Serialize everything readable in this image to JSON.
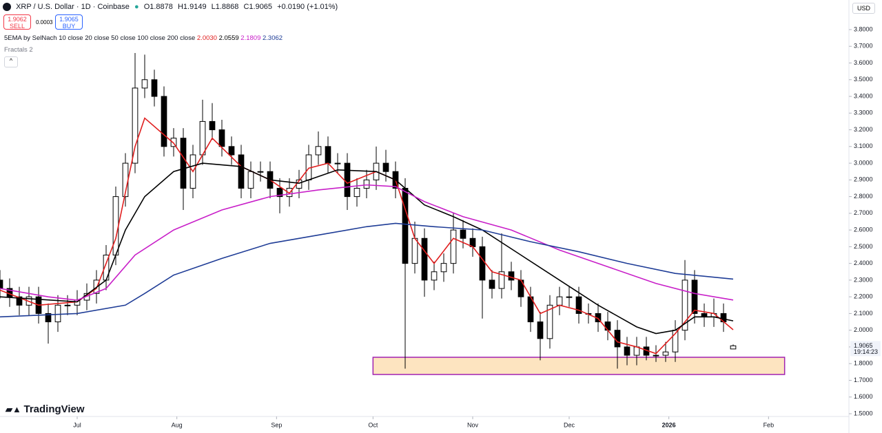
{
  "header": {
    "symbol": "XRP / U.S. Dollar · 1D · Coinbase",
    "ohlc": [
      "O1.8878",
      "H1.9149",
      "L1.8868",
      "C1.9065",
      "+0.0190 (+1.01%)"
    ],
    "sell_price": "1.9062",
    "sell": "SELL",
    "spread": "0.0003",
    "buy_price": "1.9065",
    "buy": "BUY",
    "indicator": "5EMA by SelNach 10 close 20 close 50 close 100 close 200 close",
    "indicator_values": [
      "2.0030",
      "2.0559",
      "2.1809",
      "2.3062"
    ],
    "fractals": "Fractals 2",
    "currency": "USD",
    "brand": "TradingView"
  },
  "chart_data": {
    "type": "candlestick",
    "x": [
      -24,
      -21,
      -18,
      -15,
      -12,
      -9,
      -6,
      -3,
      0,
      3,
      6,
      9,
      12,
      15,
      18,
      21,
      24,
      27,
      30,
      33,
      36,
      39,
      42,
      45,
      48,
      51,
      54,
      57,
      60,
      63,
      66,
      69,
      72,
      75,
      78,
      81,
      84,
      87,
      90,
      93,
      96,
      99,
      102,
      105,
      108,
      111,
      114,
      117,
      120,
      123,
      126,
      129,
      132,
      135,
      138,
      141,
      144,
      147,
      150,
      153,
      156,
      159,
      162,
      165,
      168,
      171,
      174,
      177,
      180,
      183,
      186,
      189,
      192,
      195,
      198,
      201,
      204
    ],
    "open": [
      2.3,
      2.25,
      2.2,
      2.15,
      2.2,
      2.1,
      2.05,
      2.15,
      2.15,
      2.18,
      2.22,
      2.3,
      2.45,
      2.8,
      3.0,
      3.45,
      3.5,
      3.4,
      3.1,
      3.15,
      2.85,
      3.05,
      3.25,
      3.2,
      3.1,
      3.05,
      2.85,
      2.95,
      2.95,
      2.85,
      2.8,
      2.85,
      2.9,
      3.05,
      3.1,
      3.0,
      3.0,
      2.8,
      2.85,
      2.9,
      3.0,
      2.95,
      2.85,
      2.4,
      2.55,
      2.3,
      2.35,
      2.4,
      2.6,
      2.55,
      2.5,
      2.3,
      2.25,
      2.35,
      2.3,
      2.2,
      2.05,
      1.95,
      2.15,
      2.2,
      2.2,
      2.1,
      2.1,
      2.05,
      2.0,
      1.9,
      1.85,
      1.9,
      1.85,
      1.85,
      1.87,
      2.0,
      2.3,
      2.1,
      2.08,
      2.1,
      1.8878
    ],
    "high": [
      2.36,
      2.31,
      2.26,
      2.26,
      2.26,
      2.16,
      2.21,
      2.21,
      2.24,
      2.28,
      2.36,
      2.51,
      2.86,
      3.06,
      3.66,
      3.65,
      3.56,
      3.46,
      3.21,
      3.21,
      3.11,
      3.38,
      3.36,
      3.26,
      3.16,
      3.11,
      3.01,
      3.01,
      3.01,
      2.91,
      2.91,
      2.96,
      3.11,
      3.19,
      3.16,
      3.06,
      3.06,
      2.91,
      2.96,
      3.1,
      3.08,
      3.01,
      2.91,
      2.65,
      2.61,
      2.41,
      2.46,
      2.7,
      2.66,
      2.61,
      2.56,
      2.36,
      2.58,
      2.41,
      2.36,
      2.26,
      2.11,
      2.21,
      2.26,
      2.26,
      2.26,
      2.16,
      2.16,
      2.11,
      2.06,
      1.96,
      1.96,
      1.96,
      1.91,
      1.93,
      2.06,
      2.42,
      2.36,
      2.16,
      2.19,
      2.16,
      1.9149
    ],
    "low": [
      2.19,
      2.14,
      2.09,
      2.09,
      2.04,
      1.92,
      1.99,
      2.09,
      2.09,
      2.12,
      2.16,
      2.24,
      2.39,
      2.74,
      2.94,
      3.39,
      3.34,
      3.04,
      3.04,
      2.72,
      2.79,
      2.99,
      3.14,
      3.04,
      2.99,
      2.79,
      2.79,
      2.89,
      2.79,
      2.7,
      2.74,
      2.79,
      2.84,
      2.99,
      2.94,
      2.94,
      2.72,
      2.74,
      2.79,
      2.84,
      2.89,
      2.79,
      1.77,
      2.34,
      2.2,
      2.24,
      2.29,
      2.34,
      2.49,
      2.44,
      2.07,
      2.19,
      2.19,
      2.24,
      2.14,
      1.99,
      1.82,
      1.89,
      2.09,
      2.14,
      2.04,
      2.04,
      1.99,
      1.94,
      1.77,
      1.79,
      1.79,
      1.82,
      1.81,
      1.81,
      1.81,
      1.94,
      2.04,
      2.02,
      2.02,
      1.99,
      1.8868
    ],
    "close": [
      2.25,
      2.2,
      2.15,
      2.2,
      2.1,
      2.05,
      2.15,
      2.15,
      2.18,
      2.22,
      2.3,
      2.45,
      2.8,
      3.0,
      3.45,
      3.5,
      3.4,
      3.1,
      3.15,
      2.85,
      3.05,
      3.25,
      3.2,
      3.1,
      3.05,
      2.85,
      2.95,
      2.95,
      2.85,
      2.8,
      2.85,
      2.9,
      3.05,
      3.1,
      3.0,
      3.0,
      2.8,
      2.85,
      2.9,
      3.0,
      2.95,
      2.85,
      2.4,
      2.55,
      2.3,
      2.35,
      2.4,
      2.6,
      2.55,
      2.5,
      2.3,
      2.25,
      2.35,
      2.3,
      2.2,
      2.05,
      1.95,
      2.15,
      2.2,
      2.2,
      2.1,
      2.1,
      2.05,
      2.0,
      1.9,
      1.85,
      1.9,
      1.85,
      1.85,
      1.87,
      2.0,
      2.3,
      2.1,
      2.08,
      2.1,
      2.05,
      1.9065
    ],
    "up_color": "#ffffff",
    "down_color": "#000000",
    "series": [
      {
        "name": "10 close",
        "color": "#e01e1e",
        "x": [
          -24,
          -12,
          0,
          6,
          12,
          18,
          21,
          30,
          36,
          42,
          51,
          60,
          66,
          72,
          78,
          84,
          93,
          99,
          105,
          111,
          117,
          123,
          129,
          138,
          144,
          150,
          156,
          162,
          168,
          174,
          180,
          186,
          192,
          198,
          204
        ],
        "values": [
          2.24,
          2.15,
          2.17,
          2.25,
          2.55,
          3.1,
          3.27,
          3.12,
          2.95,
          3.15,
          2.98,
          2.9,
          2.82,
          2.97,
          3.0,
          2.88,
          2.95,
          2.9,
          2.55,
          2.4,
          2.55,
          2.5,
          2.35,
          2.3,
          2.1,
          2.15,
          2.12,
          2.07,
          1.93,
          1.9,
          1.86,
          1.98,
          2.12,
          2.1,
          2.003
        ]
      },
      {
        "name": "20 close",
        "color": "#000000",
        "x": [
          -24,
          0,
          9,
          15,
          21,
          30,
          39,
          51,
          60,
          69,
          81,
          93,
          99,
          108,
          117,
          126,
          138,
          150,
          162,
          174,
          180,
          186,
          192,
          198,
          204
        ],
        "values": [
          2.2,
          2.17,
          2.3,
          2.6,
          2.8,
          2.95,
          3.0,
          2.98,
          2.9,
          2.88,
          2.96,
          2.95,
          2.9,
          2.75,
          2.68,
          2.6,
          2.45,
          2.3,
          2.15,
          2.02,
          1.98,
          2.0,
          2.08,
          2.08,
          2.0559
        ]
      },
      {
        "name": "50 close",
        "color": "#c81ec8",
        "x": [
          -24,
          -9,
          0,
          9,
          18,
          30,
          45,
          60,
          75,
          90,
          99,
          108,
          120,
          135,
          150,
          165,
          180,
          192,
          204
        ],
        "values": [
          2.25,
          2.2,
          2.18,
          2.25,
          2.45,
          2.6,
          2.72,
          2.8,
          2.84,
          2.87,
          2.86,
          2.77,
          2.68,
          2.6,
          2.48,
          2.38,
          2.28,
          2.22,
          2.1809
        ]
      },
      {
        "name": "100 close",
        "color": "#1e3c96",
        "x": [
          -24,
          0,
          15,
          21,
          30,
          45,
          60,
          75,
          90,
          99,
          111,
          126,
          141,
          156,
          171,
          186,
          204
        ],
        "values": [
          2.08,
          2.1,
          2.15,
          2.22,
          2.33,
          2.43,
          2.52,
          2.57,
          2.62,
          2.64,
          2.62,
          2.6,
          2.53,
          2.47,
          2.4,
          2.34,
          2.3062
        ]
      }
    ],
    "zone": {
      "x": [
        92,
        220
      ],
      "y": [
        1.735,
        1.838
      ],
      "color": "#fde4c0",
      "border": "#a020b0"
    },
    "xlim": [
      -24,
      240
    ],
    "ylim": [
      1.4835,
      3.9772
    ],
    "xticks": [
      {
        "value": 0,
        "label": "Jul"
      },
      {
        "value": 31,
        "label": "Aug"
      },
      {
        "value": 62,
        "label": "Sep"
      },
      {
        "value": 92,
        "label": "Oct"
      },
      {
        "value": 123,
        "label": "Nov"
      },
      {
        "value": 153,
        "label": "Dec"
      },
      {
        "value": 184,
        "label": "2026"
      },
      {
        "value": 215,
        "label": "Feb"
      }
    ],
    "yticks": [
      {
        "value": 1.5,
        "label": "1.5000"
      },
      {
        "value": 1.6,
        "label": "1.6000"
      },
      {
        "value": 1.7,
        "label": "1.7000"
      },
      {
        "value": 1.8,
        "label": "1.8000"
      },
      {
        "value": 1.9,
        "label": "1.9000"
      },
      {
        "value": 2.0,
        "label": "2.0000"
      },
      {
        "value": 2.1,
        "label": "2.1000"
      },
      {
        "value": 2.2,
        "label": "2.2000"
      },
      {
        "value": 2.3,
        "label": "2.3000"
      },
      {
        "value": 2.4,
        "label": "2.4000"
      },
      {
        "value": 2.5,
        "label": "2.5000"
      },
      {
        "value": 2.6,
        "label": "2.6000"
      },
      {
        "value": 2.7,
        "label": "2.7000"
      },
      {
        "value": 2.8,
        "label": "2.8000"
      },
      {
        "value": 2.9,
        "label": "2.9000"
      },
      {
        "value": 3.0,
        "label": "3.0000"
      },
      {
        "value": 3.1,
        "label": "3.1000"
      },
      {
        "value": 3.2,
        "label": "3.2000"
      },
      {
        "value": 3.3,
        "label": "3.3000"
      },
      {
        "value": 3.4,
        "label": "3.4000"
      },
      {
        "value": 3.5,
        "label": "3.5000"
      },
      {
        "value": 3.6,
        "label": "3.6000"
      },
      {
        "value": 3.7,
        "label": "3.7000"
      },
      {
        "value": 3.8,
        "label": "3.8000"
      }
    ],
    "last_price": 1.9065,
    "countdown": "19:14:23",
    "grid": false
  }
}
